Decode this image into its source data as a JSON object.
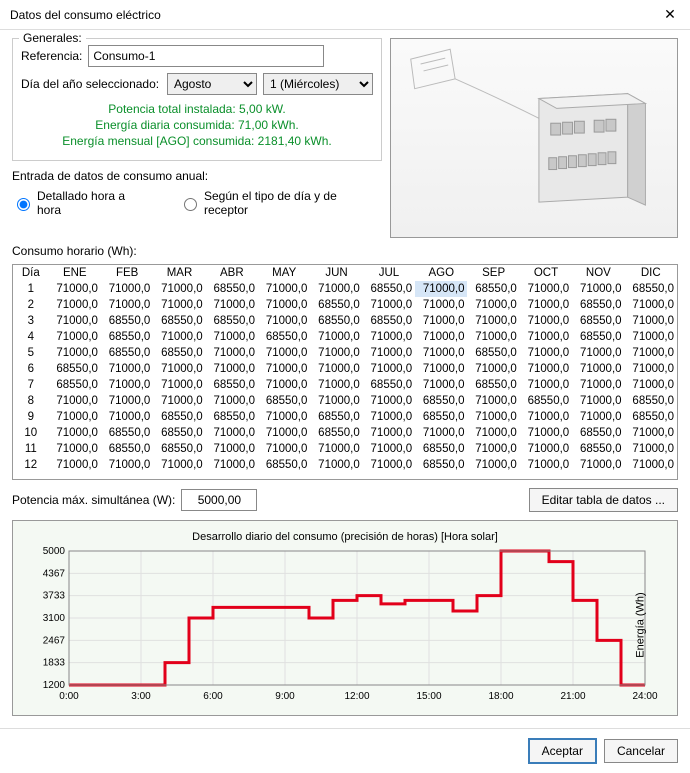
{
  "window": {
    "title": "Datos del consumo eléctrico"
  },
  "generales": {
    "legend": "Generales:",
    "ref_label": "Referencia:",
    "ref_value": "Consumo-1",
    "day_label": "Día del año seleccionado:",
    "month_selected": "Agosto",
    "day_selected": "1 (Miércoles)",
    "info1": "Potencia total instalada: 5,00 kW.",
    "info2": "Energía diaria consumida: 71,00 kWh.",
    "info3": "Energía mensual [AGO] consumida: 2181,40 kWh."
  },
  "entrada": {
    "legend": "Entrada de datos de consumo anual:",
    "opt1": "Detallado hora a hora",
    "opt2": "Según el tipo de día y de receptor"
  },
  "consumo": {
    "legend": "Consumo horario (Wh):",
    "day_col": "Día",
    "months": [
      "ENE",
      "FEB",
      "MAR",
      "ABR",
      "MAY",
      "JUN",
      "JUL",
      "AGO",
      "SEP",
      "OCT",
      "NOV",
      "DIC"
    ],
    "rows": [
      [
        1,
        "71000,0",
        "71000,0",
        "71000,0",
        "68550,0",
        "71000,0",
        "71000,0",
        "68550,0",
        "71000,0",
        "68550,0",
        "71000,0",
        "71000,0",
        "68550,0"
      ],
      [
        2,
        "71000,0",
        "71000,0",
        "71000,0",
        "71000,0",
        "71000,0",
        "68550,0",
        "71000,0",
        "71000,0",
        "71000,0",
        "71000,0",
        "68550,0",
        "71000,0"
      ],
      [
        3,
        "71000,0",
        "68550,0",
        "68550,0",
        "68550,0",
        "71000,0",
        "68550,0",
        "68550,0",
        "71000,0",
        "71000,0",
        "71000,0",
        "68550,0",
        "71000,0"
      ],
      [
        4,
        "71000,0",
        "68550,0",
        "71000,0",
        "71000,0",
        "68550,0",
        "71000,0",
        "71000,0",
        "71000,0",
        "71000,0",
        "71000,0",
        "68550,0",
        "71000,0"
      ],
      [
        5,
        "71000,0",
        "68550,0",
        "68550,0",
        "71000,0",
        "71000,0",
        "71000,0",
        "71000,0",
        "71000,0",
        "68550,0",
        "71000,0",
        "71000,0",
        "71000,0"
      ],
      [
        6,
        "68550,0",
        "71000,0",
        "71000,0",
        "71000,0",
        "71000,0",
        "71000,0",
        "71000,0",
        "71000,0",
        "71000,0",
        "71000,0",
        "71000,0",
        "71000,0"
      ],
      [
        7,
        "68550,0",
        "71000,0",
        "71000,0",
        "68550,0",
        "71000,0",
        "71000,0",
        "68550,0",
        "71000,0",
        "68550,0",
        "71000,0",
        "71000,0",
        "71000,0"
      ],
      [
        8,
        "71000,0",
        "71000,0",
        "71000,0",
        "71000,0",
        "68550,0",
        "71000,0",
        "71000,0",
        "68550,0",
        "71000,0",
        "68550,0",
        "71000,0",
        "68550,0"
      ],
      [
        9,
        "71000,0",
        "71000,0",
        "68550,0",
        "68550,0",
        "71000,0",
        "68550,0",
        "71000,0",
        "68550,0",
        "71000,0",
        "71000,0",
        "71000,0",
        "68550,0"
      ],
      [
        10,
        "71000,0",
        "68550,0",
        "68550,0",
        "71000,0",
        "71000,0",
        "68550,0",
        "71000,0",
        "71000,0",
        "71000,0",
        "71000,0",
        "68550,0",
        "71000,0"
      ],
      [
        11,
        "71000,0",
        "68550,0",
        "68550,0",
        "71000,0",
        "71000,0",
        "71000,0",
        "71000,0",
        "68550,0",
        "71000,0",
        "71000,0",
        "68550,0",
        "71000,0"
      ],
      [
        12,
        "71000,0",
        "71000,0",
        "71000,0",
        "71000,0",
        "68550,0",
        "71000,0",
        "71000,0",
        "68550,0",
        "71000,0",
        "71000,0",
        "71000,0",
        "71000,0"
      ]
    ],
    "selected": {
      "row": 0,
      "col": 7
    }
  },
  "maxpow": {
    "label": "Potencia máx. simultánea (W):",
    "value": "5000,00"
  },
  "edit_btn": "Editar tabla de datos ...",
  "chart": {
    "title": "Desarrollo diario del consumo (precisión de horas) [Hora solar]",
    "ylabel": "Energía (Wh)",
    "xticks": [
      "0:00",
      "3:00",
      "6:00",
      "9:00",
      "12:00",
      "15:00",
      "18:00",
      "21:00",
      "24:00"
    ],
    "ymin": 1200,
    "ymax": 5000,
    "yticks": [
      1200,
      1833,
      2467,
      3100,
      3733,
      4367,
      5000
    ],
    "line_color": "#e2001a",
    "grid_color": "#e0e0e0",
    "bg": "#f4f9f3",
    "values": [
      1200,
      1200,
      1200,
      1200,
      1833,
      3100,
      3400,
      3400,
      3400,
      3400,
      3100,
      3600,
      3733,
      3500,
      3600,
      3600,
      3300,
      3733,
      5000,
      5000,
      4700,
      3600,
      2467,
      1200,
      1200
    ]
  },
  "footer": {
    "ok": "Aceptar",
    "cancel": "Cancelar"
  }
}
